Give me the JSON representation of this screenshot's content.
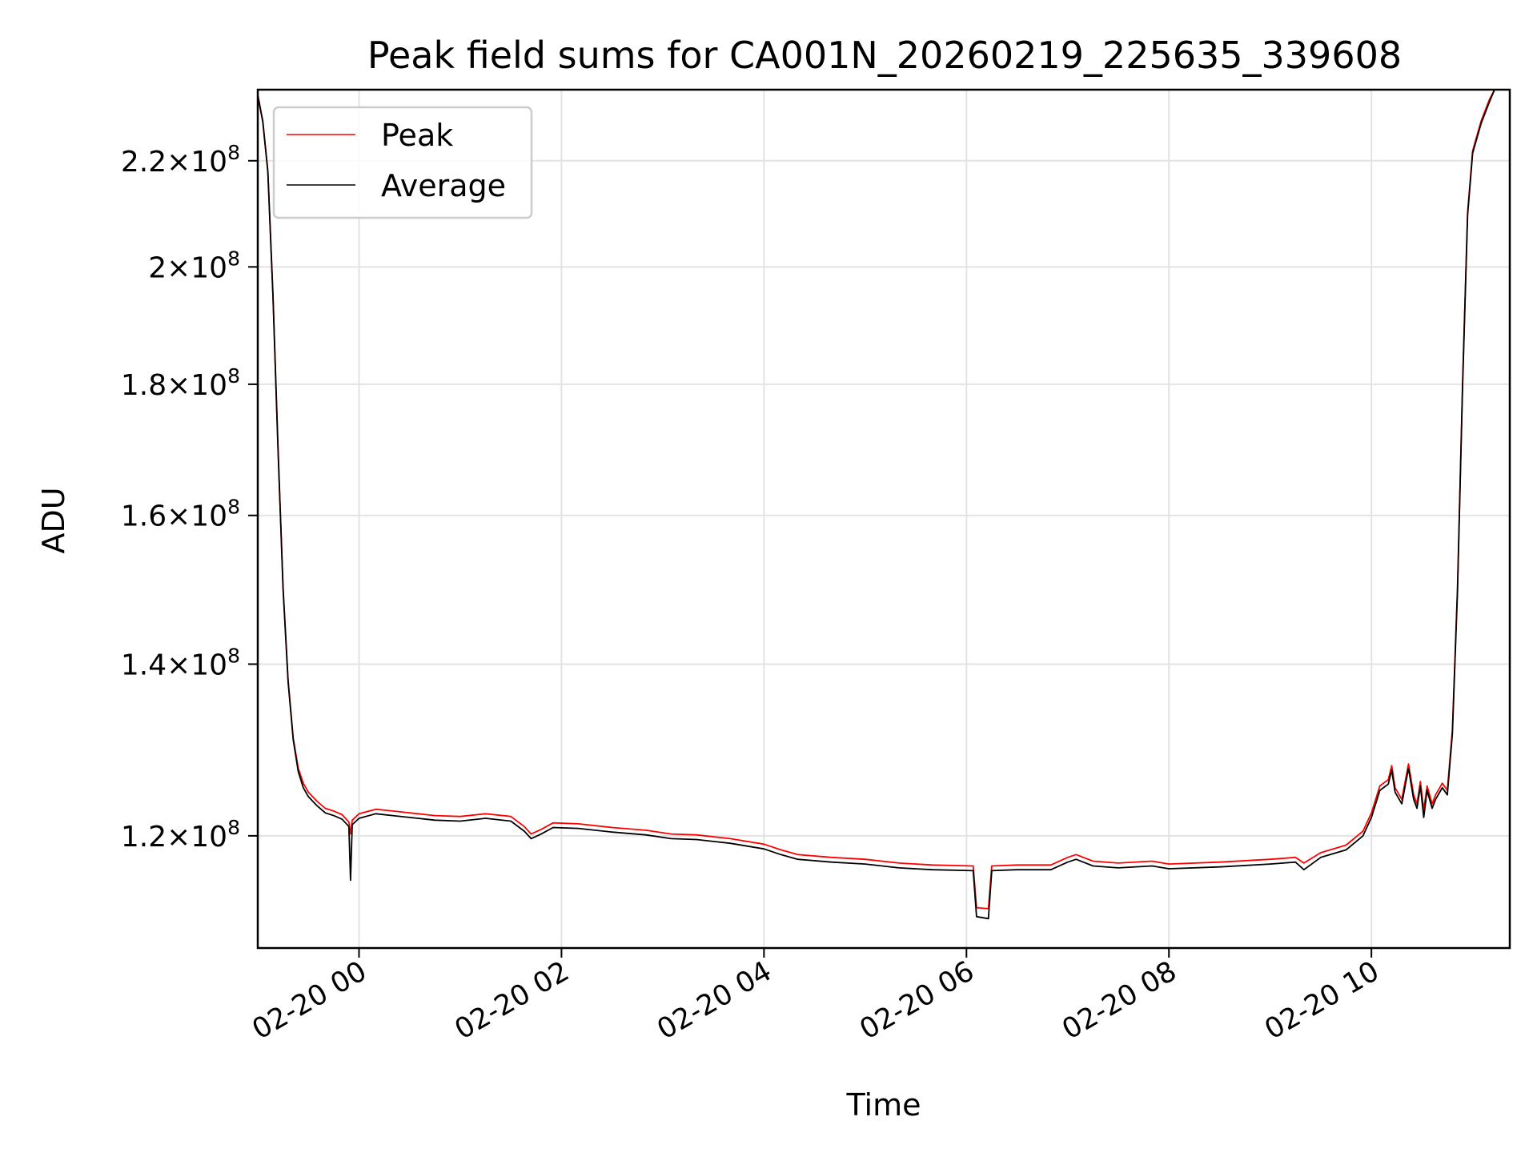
{
  "chart_data": {
    "type": "line",
    "title": "Peak field sums for CA001N_20260219_225635_339608",
    "xlabel": "Time",
    "ylabel": "ADU",
    "x_tick_labels": [
      "02-20 00",
      "02-20 02",
      "02-20 04",
      "02-20 06",
      "02-20 08",
      "02-20 10"
    ],
    "xlim": [
      "2026-02-19T23:00",
      "2026-02-20T11:22"
    ],
    "y_scale": "log",
    "ylim": [
      108500000,
      234500000
    ],
    "y_ticks": [
      {
        "value": 120000000,
        "label": "1.2×10⁸",
        "mantissa": "1.2",
        "exp": "8"
      },
      {
        "value": 140000000,
        "label": "1.4×10⁸",
        "mantissa": "1.4",
        "exp": "8"
      },
      {
        "value": 160000000,
        "label": "1.6×10⁸",
        "mantissa": "1.6",
        "exp": "8"
      },
      {
        "value": 180000000,
        "label": "1.8×10⁸",
        "mantissa": "1.8",
        "exp": "8"
      },
      {
        "value": 200000000,
        "label": "2×10⁸",
        "mantissa": "2",
        "exp": "8"
      },
      {
        "value": 220000000,
        "label": "2.2×10⁸",
        "mantissa": "2.2",
        "exp": "8"
      }
    ],
    "grid": true,
    "legend_position": "top-left",
    "series": [
      {
        "name": "Peak",
        "color": "#ff0000",
        "points": [
          [
            "2026-02-19T23:00",
            233500000
          ],
          [
            "2026-02-19T23:03",
            228000000
          ],
          [
            "2026-02-19T23:06",
            218000000
          ],
          [
            "2026-02-19T23:09",
            195000000
          ],
          [
            "2026-02-19T23:12",
            170000000
          ],
          [
            "2026-02-19T23:15",
            150000000
          ],
          [
            "2026-02-19T23:18",
            138000000
          ],
          [
            "2026-02-19T23:21",
            131000000
          ],
          [
            "2026-02-19T23:24",
            127500000
          ],
          [
            "2026-02-19T23:27",
            125800000
          ],
          [
            "2026-02-19T23:30",
            124800000
          ],
          [
            "2026-02-19T23:35",
            123800000
          ],
          [
            "2026-02-19T23:40",
            123000000
          ],
          [
            "2026-02-19T23:45",
            122700000
          ],
          [
            "2026-02-19T23:50",
            122300000
          ],
          [
            "2026-02-19T23:54",
            121500000
          ],
          [
            "2026-02-19T23:55",
            120200000
          ],
          [
            "2026-02-19T23:56",
            121700000
          ],
          [
            "2026-02-20T00:00",
            122400000
          ],
          [
            "2026-02-20T00:10",
            122900000
          ],
          [
            "2026-02-20T00:20",
            122700000
          ],
          [
            "2026-02-20T00:30",
            122500000
          ],
          [
            "2026-02-20T00:45",
            122200000
          ],
          [
            "2026-02-20T01:00",
            122100000
          ],
          [
            "2026-02-20T01:15",
            122400000
          ],
          [
            "2026-02-20T01:30",
            122100000
          ],
          [
            "2026-02-20T01:38",
            121000000
          ],
          [
            "2026-02-20T01:42",
            120200000
          ],
          [
            "2026-02-20T01:48",
            120700000
          ],
          [
            "2026-02-20T01:55",
            121400000
          ],
          [
            "2026-02-20T02:10",
            121300000
          ],
          [
            "2026-02-20T02:30",
            120900000
          ],
          [
            "2026-02-20T02:50",
            120600000
          ],
          [
            "2026-02-20T03:05",
            120200000
          ],
          [
            "2026-02-20T03:20",
            120100000
          ],
          [
            "2026-02-20T03:40",
            119700000
          ],
          [
            "2026-02-20T04:00",
            119100000
          ],
          [
            "2026-02-20T04:10",
            118500000
          ],
          [
            "2026-02-20T04:20",
            118000000
          ],
          [
            "2026-02-20T04:40",
            117700000
          ],
          [
            "2026-02-20T05:00",
            117500000
          ],
          [
            "2026-02-20T05:20",
            117100000
          ],
          [
            "2026-02-20T05:40",
            116900000
          ],
          [
            "2026-02-20T06:04",
            116800000
          ],
          [
            "2026-02-20T06:06",
            112500000
          ],
          [
            "2026-02-20T06:13",
            112400000
          ],
          [
            "2026-02-20T06:15",
            116800000
          ],
          [
            "2026-02-20T06:30",
            116900000
          ],
          [
            "2026-02-20T06:50",
            116900000
          ],
          [
            "2026-02-20T07:00",
            117700000
          ],
          [
            "2026-02-20T07:05",
            118000000
          ],
          [
            "2026-02-20T07:15",
            117300000
          ],
          [
            "2026-02-20T07:30",
            117100000
          ],
          [
            "2026-02-20T07:50",
            117300000
          ],
          [
            "2026-02-20T08:00",
            117000000
          ],
          [
            "2026-02-20T08:30",
            117200000
          ],
          [
            "2026-02-20T09:00",
            117500000
          ],
          [
            "2026-02-20T09:15",
            117700000
          ],
          [
            "2026-02-20T09:20",
            117100000
          ],
          [
            "2026-02-20T09:30",
            118200000
          ],
          [
            "2026-02-20T09:45",
            119000000
          ],
          [
            "2026-02-20T09:55",
            120500000
          ],
          [
            "2026-02-20T10:00",
            122500000
          ],
          [
            "2026-02-20T10:05",
            125500000
          ],
          [
            "2026-02-20T10:10",
            126200000
          ],
          [
            "2026-02-20T10:12",
            127800000
          ],
          [
            "2026-02-20T10:14",
            125300000
          ],
          [
            "2026-02-20T10:18",
            124000000
          ],
          [
            "2026-02-20T10:20",
            126000000
          ],
          [
            "2026-02-20T10:22",
            128000000
          ],
          [
            "2026-02-20T10:25",
            124500000
          ],
          [
            "2026-02-20T10:27",
            123500000
          ],
          [
            "2026-02-20T10:29",
            126000000
          ],
          [
            "2026-02-20T10:31",
            122800000
          ],
          [
            "2026-02-20T10:33",
            125500000
          ],
          [
            "2026-02-20T10:36",
            123500000
          ],
          [
            "2026-02-20T10:38",
            124500000
          ],
          [
            "2026-02-20T10:42",
            125800000
          ],
          [
            "2026-02-20T10:45",
            125000000
          ],
          [
            "2026-02-20T10:48",
            132000000
          ],
          [
            "2026-02-20T10:51",
            150000000
          ],
          [
            "2026-02-20T10:54",
            180000000
          ],
          [
            "2026-02-20T10:57",
            210000000
          ],
          [
            "2026-02-20T11:00",
            222000000
          ],
          [
            "2026-02-20T11:05",
            228000000
          ],
          [
            "2026-02-20T11:10",
            232500000
          ],
          [
            "2026-02-20T11:13",
            234500000
          ]
        ]
      },
      {
        "name": "Average",
        "color": "#000000",
        "points": [
          [
            "2026-02-19T23:00",
            233300000
          ],
          [
            "2026-02-19T23:03",
            227800000
          ],
          [
            "2026-02-19T23:06",
            217800000
          ],
          [
            "2026-02-19T23:09",
            194800000
          ],
          [
            "2026-02-19T23:12",
            169800000
          ],
          [
            "2026-02-19T23:15",
            149800000
          ],
          [
            "2026-02-19T23:18",
            137800000
          ],
          [
            "2026-02-19T23:21",
            130800000
          ],
          [
            "2026-02-19T23:24",
            127100000
          ],
          [
            "2026-02-19T23:27",
            125300000
          ],
          [
            "2026-02-19T23:30",
            124300000
          ],
          [
            "2026-02-19T23:35",
            123300000
          ],
          [
            "2026-02-19T23:40",
            122500000
          ],
          [
            "2026-02-19T23:45",
            122200000
          ],
          [
            "2026-02-19T23:50",
            121800000
          ],
          [
            "2026-02-19T23:54",
            121000000
          ],
          [
            "2026-02-19T23:55",
            115300000
          ],
          [
            "2026-02-19T23:56",
            121200000
          ],
          [
            "2026-02-20T00:00",
            121900000
          ],
          [
            "2026-02-20T00:10",
            122400000
          ],
          [
            "2026-02-20T00:20",
            122200000
          ],
          [
            "2026-02-20T00:30",
            122000000
          ],
          [
            "2026-02-20T00:45",
            121700000
          ],
          [
            "2026-02-20T01:00",
            121600000
          ],
          [
            "2026-02-20T01:15",
            121900000
          ],
          [
            "2026-02-20T01:30",
            121600000
          ],
          [
            "2026-02-20T01:38",
            120500000
          ],
          [
            "2026-02-20T01:42",
            119700000
          ],
          [
            "2026-02-20T01:48",
            120200000
          ],
          [
            "2026-02-20T01:55",
            120900000
          ],
          [
            "2026-02-20T02:10",
            120800000
          ],
          [
            "2026-02-20T02:30",
            120400000
          ],
          [
            "2026-02-20T02:50",
            120100000
          ],
          [
            "2026-02-20T03:05",
            119700000
          ],
          [
            "2026-02-20T03:20",
            119600000
          ],
          [
            "2026-02-20T03:40",
            119200000
          ],
          [
            "2026-02-20T04:00",
            118600000
          ],
          [
            "2026-02-20T04:10",
            118000000
          ],
          [
            "2026-02-20T04:20",
            117500000
          ],
          [
            "2026-02-20T04:40",
            117200000
          ],
          [
            "2026-02-20T05:00",
            117000000
          ],
          [
            "2026-02-20T05:20",
            116600000
          ],
          [
            "2026-02-20T05:40",
            116400000
          ],
          [
            "2026-02-20T06:04",
            116300000
          ],
          [
            "2026-02-20T06:06",
            111600000
          ],
          [
            "2026-02-20T06:13",
            111400000
          ],
          [
            "2026-02-20T06:15",
            116300000
          ],
          [
            "2026-02-20T06:30",
            116400000
          ],
          [
            "2026-02-20T06:50",
            116400000
          ],
          [
            "2026-02-20T07:00",
            117200000
          ],
          [
            "2026-02-20T07:05",
            117500000
          ],
          [
            "2026-02-20T07:15",
            116800000
          ],
          [
            "2026-02-20T07:30",
            116600000
          ],
          [
            "2026-02-20T07:50",
            116800000
          ],
          [
            "2026-02-20T08:00",
            116500000
          ],
          [
            "2026-02-20T08:30",
            116700000
          ],
          [
            "2026-02-20T09:00",
            117000000
          ],
          [
            "2026-02-20T09:15",
            117200000
          ],
          [
            "2026-02-20T09:20",
            116400000
          ],
          [
            "2026-02-20T09:30",
            117700000
          ],
          [
            "2026-02-20T09:45",
            118500000
          ],
          [
            "2026-02-20T09:55",
            120000000
          ],
          [
            "2026-02-20T10:00",
            122000000
          ],
          [
            "2026-02-20T10:05",
            125000000
          ],
          [
            "2026-02-20T10:10",
            125700000
          ],
          [
            "2026-02-20T10:12",
            127300000
          ],
          [
            "2026-02-20T10:14",
            124800000
          ],
          [
            "2026-02-20T10:18",
            123500000
          ],
          [
            "2026-02-20T10:20",
            125500000
          ],
          [
            "2026-02-20T10:22",
            127500000
          ],
          [
            "2026-02-20T10:25",
            124000000
          ],
          [
            "2026-02-20T10:27",
            123000000
          ],
          [
            "2026-02-20T10:29",
            125500000
          ],
          [
            "2026-02-20T10:31",
            122000000
          ],
          [
            "2026-02-20T10:33",
            125000000
          ],
          [
            "2026-02-20T10:36",
            123000000
          ],
          [
            "2026-02-20T10:38",
            124000000
          ],
          [
            "2026-02-20T10:42",
            125300000
          ],
          [
            "2026-02-20T10:45",
            124500000
          ],
          [
            "2026-02-20T10:48",
            131500000
          ],
          [
            "2026-02-20T10:51",
            149500000
          ],
          [
            "2026-02-20T10:54",
            179500000
          ],
          [
            "2026-02-20T10:57",
            209500000
          ],
          [
            "2026-02-20T11:00",
            221500000
          ],
          [
            "2026-02-20T11:05",
            227500000
          ],
          [
            "2026-02-20T11:10",
            232000000
          ],
          [
            "2026-02-20T11:13",
            234500000
          ]
        ]
      }
    ]
  }
}
